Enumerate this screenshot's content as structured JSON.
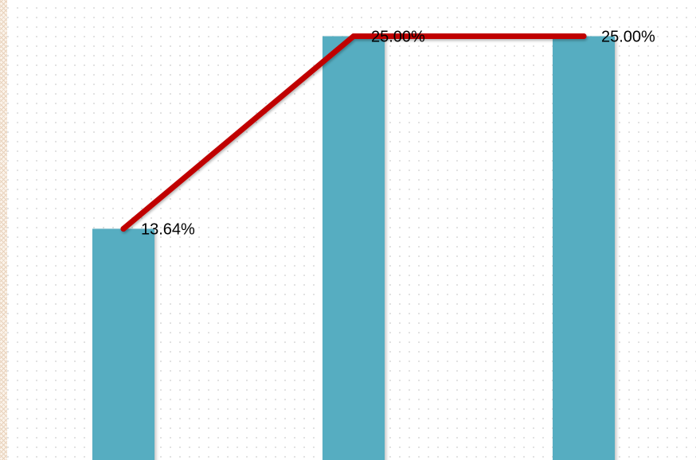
{
  "chart_data": {
    "type": "bar",
    "categories": [
      "",
      "",
      ""
    ],
    "series": [
      {
        "type": "bar",
        "values": [
          13.64,
          25.0,
          25.0
        ],
        "color": "#56adc1"
      },
      {
        "type": "line",
        "values": [
          13.64,
          25.0,
          25.0
        ],
        "color": "#c00000"
      }
    ],
    "data_labels": [
      "13.64%",
      "25.00%",
      "25.00%"
    ],
    "y_unit": "%",
    "grid": false,
    "legend": "none"
  }
}
